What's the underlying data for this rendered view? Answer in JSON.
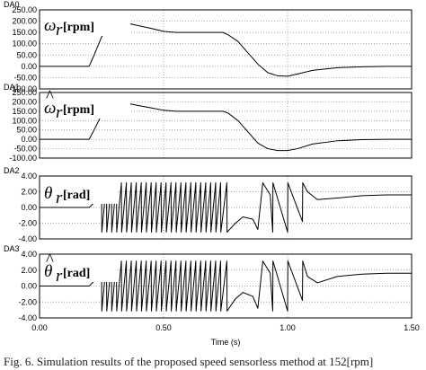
{
  "caption": "Fig. 6. Simulation results of the proposed speed sensorless method at 152[rpm]",
  "chart_data": [
    {
      "type": "line",
      "panel_label": "DA0",
      "symbol": "ω",
      "symbol_sub": "r",
      "symbol_hat": false,
      "unit": "[rpm]",
      "ylim": [
        -100,
        250
      ],
      "yticks": [
        "250.00",
        "200.00",
        "150.00",
        "100.00",
        "50.00",
        "0.00",
        "-50.00",
        "-100.00"
      ],
      "ytick_values": [
        250,
        200,
        150,
        100,
        50,
        0,
        -50,
        -100
      ],
      "x": [
        0.0,
        0.2,
        0.22,
        0.25,
        0.28,
        0.31,
        0.35,
        0.4,
        0.45,
        0.5,
        0.55,
        0.6,
        0.66,
        0.7,
        0.74,
        0.76,
        0.8,
        0.84,
        0.88,
        0.92,
        0.96,
        1.0,
        1.04,
        1.1,
        1.2,
        1.3,
        1.4,
        1.5
      ],
      "y": [
        0,
        0,
        50,
        130,
        180,
        198,
        192,
        180,
        168,
        155,
        150,
        150,
        150,
        150,
        150,
        140,
        110,
        60,
        10,
        -28,
        -42,
        -44,
        -34,
        -18,
        -6,
        -2,
        0,
        0
      ]
    },
    {
      "type": "line",
      "panel_label": "DA1",
      "symbol": "ω",
      "symbol_sub": "r",
      "symbol_hat": true,
      "unit": "[rpm]",
      "ylim": [
        -100,
        250
      ],
      "yticks": [
        "250.00",
        "200.00",
        "150.00",
        "100.00",
        "50.00",
        "0.00",
        "-50.00",
        "-100.00"
      ],
      "ytick_values": [
        250,
        200,
        150,
        100,
        50,
        0,
        -50,
        -100
      ],
      "x": [
        0.0,
        0.2,
        0.22,
        0.25,
        0.28,
        0.31,
        0.35,
        0.4,
        0.45,
        0.5,
        0.55,
        0.6,
        0.66,
        0.7,
        0.74,
        0.76,
        0.8,
        0.84,
        0.88,
        0.92,
        0.96,
        1.0,
        1.04,
        1.1,
        1.2,
        1.3,
        1.4,
        1.5
      ],
      "y": [
        0,
        0,
        50,
        130,
        180,
        200,
        193,
        180,
        168,
        155,
        150,
        150,
        150,
        150,
        150,
        140,
        100,
        40,
        -20,
        -50,
        -60,
        -60,
        -50,
        -25,
        -8,
        -2,
        0,
        0
      ]
    },
    {
      "type": "line",
      "panel_label": "DA2",
      "symbol": "θ",
      "symbol_sub": "r",
      "symbol_hat": false,
      "unit": "[rad]",
      "ylim": [
        -4,
        4
      ],
      "yticks": [
        "4.00",
        "2.00",
        "0.00",
        "-2.00",
        "-4.00"
      ],
      "ytick_values": [
        4,
        2,
        0,
        -2,
        -4
      ],
      "x": [
        0.0,
        0.2,
        0.22,
        0.25,
        0.251,
        0.27,
        0.271,
        0.29,
        0.291,
        0.31,
        0.311,
        0.33,
        0.331,
        0.35,
        0.351,
        0.37,
        0.371,
        0.39,
        0.391,
        0.41,
        0.411,
        0.43,
        0.431,
        0.45,
        0.451,
        0.47,
        0.471,
        0.49,
        0.491,
        0.51,
        0.511,
        0.53,
        0.531,
        0.55,
        0.551,
        0.57,
        0.571,
        0.59,
        0.591,
        0.61,
        0.611,
        0.63,
        0.631,
        0.65,
        0.651,
        0.67,
        0.671,
        0.69,
        0.691,
        0.71,
        0.711,
        0.73,
        0.731,
        0.755,
        0.756,
        0.79,
        0.82,
        0.86,
        0.88,
        0.9,
        0.93,
        0.94,
        0.941,
        1.0,
        1.001,
        1.06,
        1.061,
        1.08,
        1.12,
        1.2,
        1.3,
        1.4,
        1.5
      ],
      "y": [
        0,
        0,
        0.6,
        3.14,
        -3.14,
        3.14,
        -3.14,
        3.14,
        -3.14,
        3.14,
        -3.14,
        3.14,
        -3.14,
        3.14,
        -3.14,
        3.14,
        -3.14,
        3.14,
        -3.14,
        3.14,
        -3.14,
        3.14,
        -3.14,
        3.14,
        -3.14,
        3.14,
        -3.14,
        3.14,
        -3.14,
        3.14,
        -3.14,
        3.14,
        -3.14,
        3.14,
        -3.14,
        3.14,
        -3.14,
        3.14,
        -3.14,
        3.14,
        -3.14,
        3.14,
        -3.14,
        3.14,
        -3.14,
        3.14,
        -3.14,
        3.14,
        -3.14,
        3.14,
        -3.14,
        3.14,
        -3.14,
        3.14,
        -3.14,
        -2.0,
        -1.2,
        -1.5,
        -2.8,
        3.14,
        1.6,
        -3.14,
        3.14,
        -3.14,
        3.14,
        -1.8,
        3.14,
        2.0,
        1.0,
        1.2,
        1.5,
        1.6,
        1.6
      ]
    },
    {
      "type": "line",
      "panel_label": "DA3",
      "symbol": "θ",
      "symbol_sub": "r",
      "symbol_hat": true,
      "unit": "[rad]",
      "ylim": [
        -4,
        4
      ],
      "yticks": [
        "4.00",
        "2.00",
        "0.00",
        "-2.00",
        "-4.00"
      ],
      "ytick_values": [
        4,
        2,
        0,
        -2,
        -4
      ],
      "x": [
        0.0,
        0.2,
        0.22,
        0.25,
        0.251,
        0.27,
        0.271,
        0.29,
        0.291,
        0.31,
        0.311,
        0.33,
        0.331,
        0.35,
        0.351,
        0.37,
        0.371,
        0.39,
        0.391,
        0.41,
        0.411,
        0.43,
        0.431,
        0.45,
        0.451,
        0.47,
        0.471,
        0.49,
        0.491,
        0.51,
        0.511,
        0.53,
        0.531,
        0.55,
        0.551,
        0.57,
        0.571,
        0.59,
        0.591,
        0.61,
        0.611,
        0.63,
        0.631,
        0.65,
        0.651,
        0.67,
        0.671,
        0.69,
        0.691,
        0.71,
        0.711,
        0.73,
        0.731,
        0.755,
        0.756,
        0.79,
        0.82,
        0.86,
        0.88,
        0.9,
        0.93,
        0.94,
        0.941,
        1.0,
        1.001,
        1.06,
        1.061,
        1.08,
        1.12,
        1.2,
        1.3,
        1.4,
        1.5
      ],
      "y": [
        0,
        0,
        0.6,
        3.14,
        -3.14,
        3.14,
        -3.14,
        3.14,
        -3.14,
        3.14,
        -3.14,
        3.14,
        -3.14,
        3.14,
        -3.14,
        3.14,
        -3.14,
        3.14,
        -3.14,
        3.14,
        -3.14,
        3.14,
        -3.14,
        3.14,
        -3.14,
        3.14,
        -3.14,
        3.14,
        -3.14,
        3.14,
        -3.14,
        3.14,
        -3.14,
        3.14,
        -3.14,
        3.14,
        -3.14,
        3.14,
        -3.14,
        3.14,
        -3.14,
        3.14,
        -3.14,
        3.14,
        -3.14,
        3.14,
        -3.14,
        3.14,
        -3.14,
        3.14,
        -3.14,
        3.14,
        -3.14,
        3.14,
        -3.14,
        -1.6,
        -0.8,
        -1.3,
        -2.8,
        3.14,
        1.6,
        -3.14,
        3.14,
        -3.14,
        3.14,
        -1.8,
        3.14,
        1.2,
        0.4,
        1.2,
        1.5,
        1.6,
        1.6
      ]
    }
  ],
  "x_axis": {
    "label": "Time (s)",
    "xlim": [
      0.0,
      1.5
    ],
    "ticks": [
      "0.00",
      "0.50",
      "1.00",
      "1.50"
    ],
    "tick_values": [
      0.0,
      0.5,
      1.0,
      1.5
    ]
  },
  "style": {
    "line_color": "#000000",
    "grid_color": "#888888",
    "frame_color": "#000000",
    "grid": true
  }
}
